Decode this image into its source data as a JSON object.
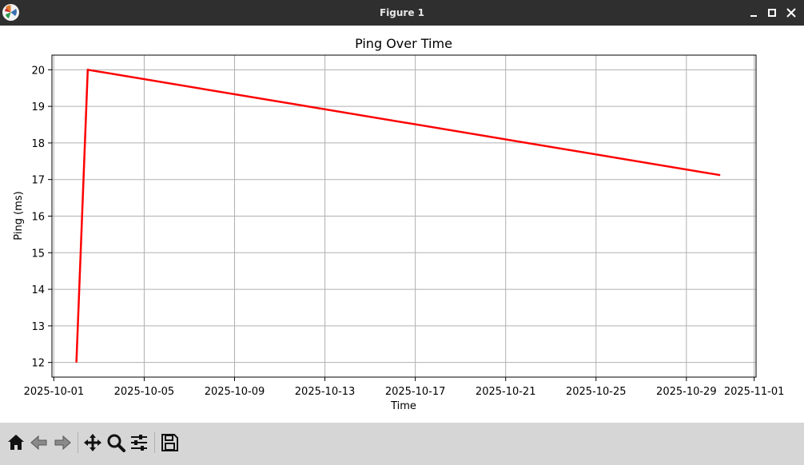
{
  "window": {
    "title": "Figure 1"
  },
  "toolbar": {
    "buttons": [
      {
        "name": "home",
        "icon": "home-icon"
      },
      {
        "name": "back",
        "icon": "arrow-left-icon"
      },
      {
        "name": "forward",
        "icon": "arrow-right-icon"
      },
      {
        "name": "pan",
        "icon": "move-icon"
      },
      {
        "name": "zoom",
        "icon": "magnifier-icon"
      },
      {
        "name": "configure",
        "icon": "sliders-icon"
      },
      {
        "name": "save",
        "icon": "floppy-icon"
      }
    ]
  },
  "chart_data": {
    "type": "line",
    "title": "Ping Over Time",
    "xlabel": "Time",
    "ylabel": "Ping (ms)",
    "x": [
      "2025-10-02",
      "2025-10-02T12:00",
      "2025-10-30T12:00"
    ],
    "series": [
      {
        "values": [
          12,
          20,
          17.12
        ],
        "color": "#ff0000"
      }
    ],
    "xticks": [
      "2025-10-01",
      "2025-10-05",
      "2025-10-09",
      "2025-10-13",
      "2025-10-17",
      "2025-10-21",
      "2025-10-25",
      "2025-10-29",
      "2025-11-01"
    ],
    "yticks": [
      12,
      13,
      14,
      15,
      16,
      17,
      18,
      19,
      20
    ],
    "xlim": [
      "2025-09-30T22:00",
      "2025-11-01T02:00"
    ],
    "ylim": [
      11.6,
      20.4
    ],
    "grid": true
  }
}
